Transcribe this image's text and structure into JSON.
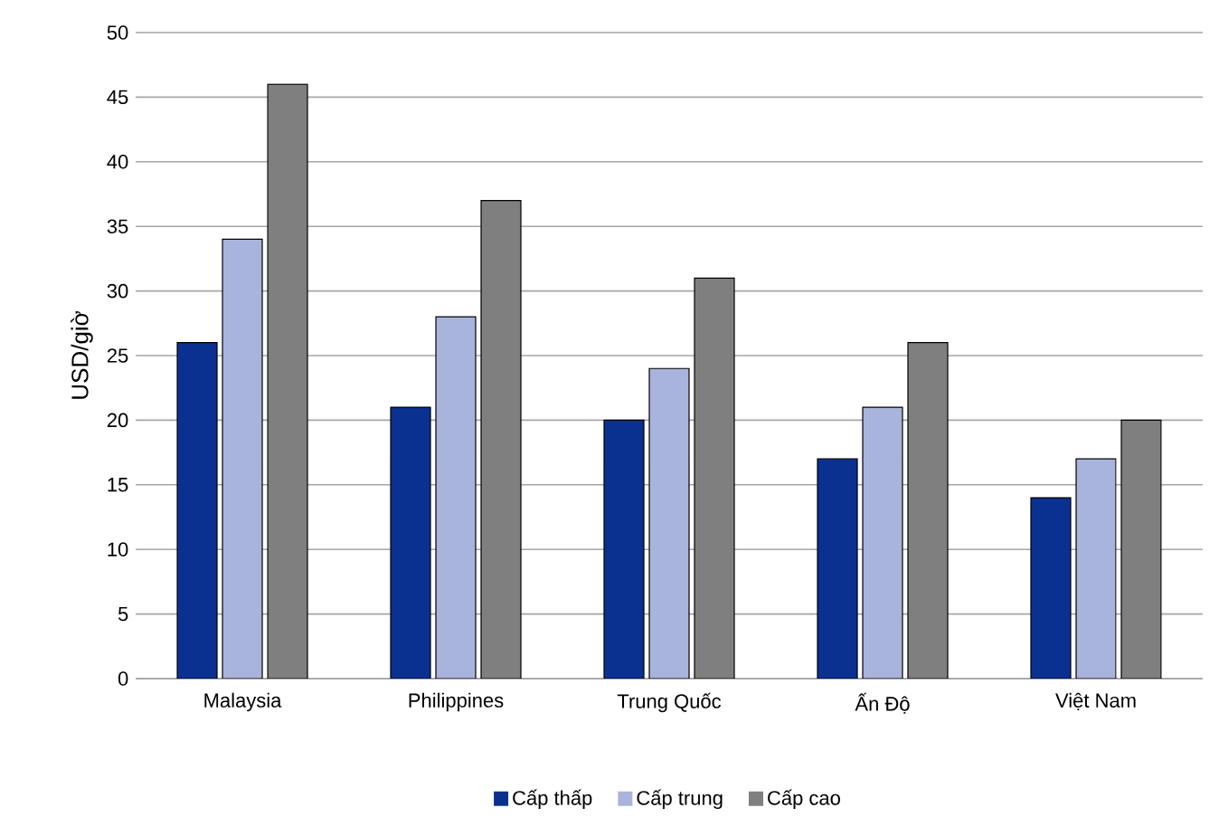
{
  "chart_data": {
    "type": "bar",
    "ylabel": "USD/giờ",
    "categories": [
      "Malaysia",
      "Philippines",
      "Trung Quốc",
      "Ấn Độ",
      "Việt Nam"
    ],
    "series": [
      {
        "name": "Cấp thấp",
        "color": "#0b3190",
        "values": [
          26,
          21,
          20,
          17,
          14
        ]
      },
      {
        "name": "Cấp trung",
        "color": "#a8b4dc",
        "values": [
          34,
          28,
          24,
          21,
          17
        ]
      },
      {
        "name": "Cấp cao",
        "color": "#7f7f7f",
        "values": [
          46,
          37,
          31,
          26,
          20
        ]
      }
    ],
    "ylim": [
      0,
      50
    ],
    "yticks": [
      0,
      5,
      10,
      15,
      20,
      25,
      30,
      35,
      40,
      45,
      50
    ],
    "grid": "y",
    "legend": "bottom"
  }
}
